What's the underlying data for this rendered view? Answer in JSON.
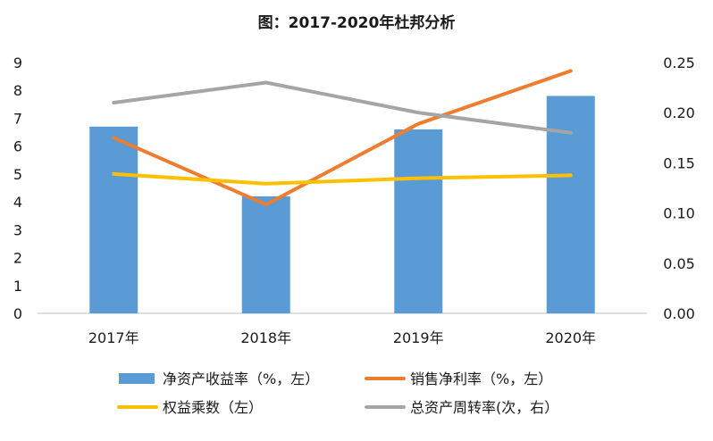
{
  "chart_data": {
    "type": "bar",
    "title": "图：2017-2020年杜邦分析",
    "categories": [
      "2017年",
      "2018年",
      "2019年",
      "2020年"
    ],
    "y_left": {
      "min": 0,
      "max": 9,
      "ticks": [
        "0",
        "1",
        "2",
        "3",
        "4",
        "5",
        "6",
        "7",
        "8",
        "9"
      ]
    },
    "y_right": {
      "min": 0,
      "max": 0.25,
      "ticks": [
        "0.00",
        "0.05",
        "0.10",
        "0.15",
        "0.20",
        "0.25"
      ]
    },
    "grid": false,
    "legend_position": "bottom",
    "series": [
      {
        "name": "净资产收益率（%，左）",
        "kind": "bar",
        "axis": "left",
        "color": "#5b9bd5",
        "values": [
          6.7,
          4.2,
          6.6,
          7.8
        ]
      },
      {
        "name": "销售净利率（%，左）",
        "kind": "line",
        "axis": "left",
        "color": "#ed7d31",
        "values": [
          6.3,
          3.9,
          6.8,
          8.7
        ]
      },
      {
        "name": "权益乘数（左）",
        "kind": "line",
        "axis": "left",
        "color": "#ffc000",
        "values": [
          5.0,
          4.65,
          4.85,
          4.95
        ]
      },
      {
        "name": "总资产周转率(次，右）",
        "kind": "line",
        "axis": "right",
        "color": "#a5a5a5",
        "values": [
          0.21,
          0.23,
          0.2,
          0.18
        ]
      }
    ]
  }
}
